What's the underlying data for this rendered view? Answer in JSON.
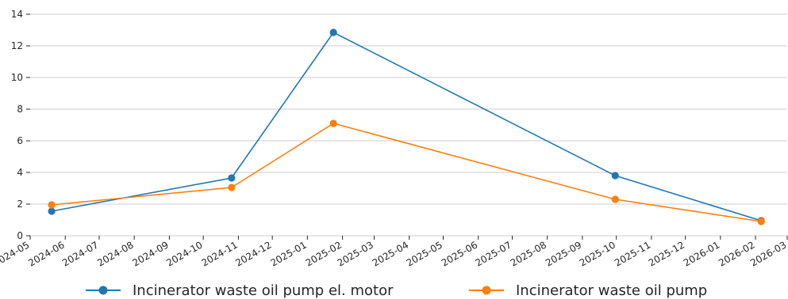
{
  "chart_data": {
    "type": "line",
    "title": "",
    "xlabel": "",
    "ylabel": "",
    "ylim": [
      0,
      14
    ],
    "yticks": [
      0,
      2,
      4,
      6,
      8,
      10,
      12,
      14
    ],
    "xlim": [
      "2024-05",
      "2026-03"
    ],
    "xtick_labels": [
      "2024-05",
      "2024-06",
      "2024-07",
      "2024-08",
      "2024-09",
      "2024-10",
      "2024-11",
      "2024-12",
      "2025-01",
      "2025-02",
      "2025-03",
      "2025-04",
      "2025-05",
      "2025-06",
      "2025-07",
      "2025-08",
      "2025-09",
      "2025-10",
      "2025-11",
      "2025-12",
      "2026-01",
      "2026-02",
      "2026-03"
    ],
    "grid": "horizontal",
    "legend_position": "bottom",
    "x": [
      "2024-05-20",
      "2024-10-26",
      "2025-01-24",
      "2025-09-30",
      "2026-02-06"
    ],
    "series": [
      {
        "name": "Incinerator waste oil pump el. motor",
        "color": "#1f77b4",
        "values": [
          1.55,
          3.65,
          12.85,
          3.8,
          0.95
        ]
      },
      {
        "name": "Incinerator waste oil pump",
        "color": "#ff7f0e",
        "values": [
          1.95,
          3.05,
          7.1,
          2.3,
          0.9
        ]
      }
    ]
  }
}
